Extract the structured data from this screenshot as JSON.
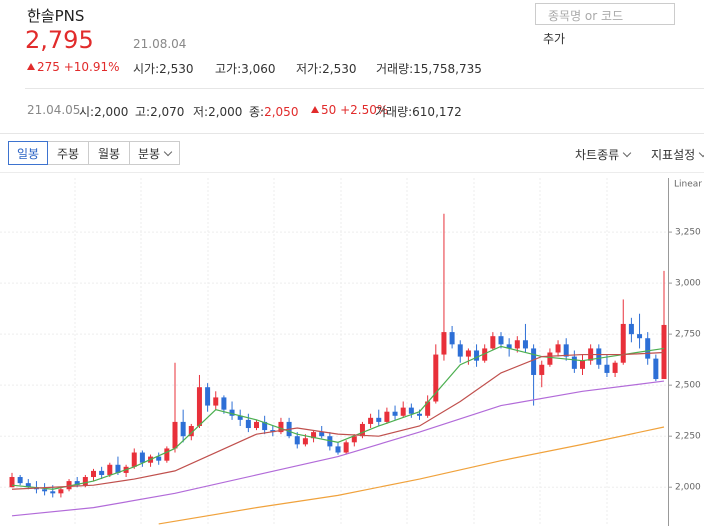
{
  "header": {
    "name": "한솔PNS",
    "price": "2,795",
    "date": "21.08.04",
    "change": "275 +10.91%",
    "open": "시가:2,530",
    "high": "고가:3,060",
    "low": "저가:2,530",
    "volume": "거래량:15,758,735"
  },
  "search": {
    "placeholder": "종목명 or 코드",
    "button": "추가"
  },
  "hover": {
    "date": "21.04.05",
    "open": "시:2,000",
    "high": "고:2,070",
    "low": "저:2,000",
    "close_label": "종:",
    "close": "2,050",
    "change": "50 +2.50%",
    "volume": "거래량:610,172"
  },
  "tabs": [
    "일봉",
    "주봉",
    "월봉",
    "분봉"
  ],
  "menus": [
    "차트종류",
    "지표설정"
  ],
  "chart_data": {
    "type": "candlestick",
    "scale_label": "Linear",
    "ylim": [
      1810,
      3515
    ],
    "yticks": [
      {
        "value": 2000,
        "label": "2,000"
      },
      {
        "value": 2250,
        "label": "2,250"
      },
      {
        "value": 2500,
        "label": "2,500"
      },
      {
        "value": 2750,
        "label": "2,750"
      },
      {
        "value": 3000,
        "label": "3,000"
      },
      {
        "value": 3250,
        "label": "3,250"
      }
    ],
    "grid": true,
    "up_color": "#e8303a",
    "down_color": "#2d6fd6",
    "open": [
      2000,
      2050,
      2020,
      2000,
      1990,
      1980,
      1970,
      1990,
      2030,
      2010,
      2050,
      2080,
      2060,
      2110,
      2070,
      2100,
      2170,
      2120,
      2150,
      2130,
      2190,
      2320,
      2250,
      2300,
      2490,
      2400,
      2440,
      2380,
      2350,
      2330,
      2290,
      2320,
      2280,
      2270,
      2320,
      2250,
      2210,
      2240,
      2270,
      2250,
      2200,
      2170,
      2220,
      2250,
      2310,
      2340,
      2320,
      2370,
      2350,
      2390,
      2360,
      2350,
      2420,
      2650,
      2760,
      2700,
      2640,
      2670,
      2620,
      2680,
      2740,
      2700,
      2680,
      2720,
      2680,
      2550,
      2600,
      2660,
      2700,
      2640,
      2580,
      2620,
      2680,
      2600,
      2560,
      2610,
      2800,
      2750,
      2730,
      2630,
      2530
    ],
    "high": [
      2070,
      2060,
      2040,
      2030,
      2020,
      2010,
      2000,
      2040,
      2050,
      2060,
      2090,
      2100,
      2120,
      2150,
      2110,
      2190,
      2180,
      2160,
      2170,
      2200,
      2610,
      2380,
      2310,
      2550,
      2510,
      2470,
      2450,
      2420,
      2380,
      2360,
      2330,
      2350,
      2300,
      2340,
      2340,
      2270,
      2260,
      2280,
      2300,
      2270,
      2220,
      2230,
      2260,
      2320,
      2360,
      2380,
      2390,
      2400,
      2420,
      2410,
      2380,
      2450,
      2700,
      3340,
      2790,
      2720,
      2680,
      2700,
      2700,
      2760,
      2760,
      2730,
      2740,
      2800,
      2700,
      2620,
      2680,
      2720,
      2730,
      2670,
      2650,
      2700,
      2700,
      2650,
      2620,
      2920,
      2830,
      2850,
      2760,
      2650,
      3060
    ],
    "low": [
      2000,
      2010,
      1990,
      1970,
      1960,
      1950,
      1950,
      1980,
      2000,
      2000,
      2030,
      2040,
      2050,
      2060,
      2050,
      2090,
      2100,
      2100,
      2110,
      2120,
      2170,
      2220,
      2230,
      2290,
      2370,
      2380,
      2360,
      2330,
      2300,
      2270,
      2280,
      2260,
      2250,
      2260,
      2240,
      2190,
      2200,
      2220,
      2240,
      2180,
      2160,
      2160,
      2200,
      2240,
      2290,
      2300,
      2310,
      2330,
      2340,
      2340,
      2330,
      2340,
      2410,
      2620,
      2680,
      2610,
      2600,
      2590,
      2610,
      2670,
      2680,
      2640,
      2660,
      2660,
      2400,
      2490,
      2590,
      2640,
      2620,
      2560,
      2550,
      2600,
      2580,
      2540,
      2540,
      2600,
      2710,
      2680,
      2600,
      2520,
      2530
    ],
    "close": [
      2050,
      2020,
      2000,
      1990,
      1980,
      1970,
      1990,
      2030,
      2010,
      2050,
      2080,
      2060,
      2110,
      2070,
      2100,
      2170,
      2120,
      2150,
      2130,
      2190,
      2320,
      2250,
      2300,
      2490,
      2400,
      2440,
      2380,
      2350,
      2330,
      2290,
      2320,
      2280,
      2270,
      2320,
      2250,
      2210,
      2240,
      2270,
      2250,
      2200,
      2170,
      2220,
      2250,
      2310,
      2340,
      2320,
      2370,
      2350,
      2390,
      2360,
      2350,
      2420,
      2650,
      2760,
      2700,
      2640,
      2670,
      2620,
      2680,
      2740,
      2700,
      2680,
      2720,
      2680,
      2550,
      2600,
      2660,
      2700,
      2640,
      2580,
      2620,
      2680,
      2600,
      2560,
      2610,
      2800,
      2750,
      2730,
      2630,
      2530,
      2795
    ],
    "series": [
      {
        "color": "#4caf50",
        "x": [
          0,
          5,
          10,
          15,
          20,
          25,
          30,
          35,
          40,
          45,
          50,
          55,
          60,
          65,
          70,
          75,
          80
        ],
        "values": [
          2010,
          1990,
          2030,
          2100,
          2190,
          2380,
          2330,
          2260,
          2220,
          2300,
          2370,
          2600,
          2690,
          2640,
          2620,
          2650,
          2680
        ]
      },
      {
        "color": "#c0504d",
        "x": [
          0,
          5,
          10,
          15,
          20,
          25,
          30,
          35,
          40,
          45,
          50,
          55,
          60,
          65,
          70,
          75,
          80
        ],
        "values": [
          1990,
          2000,
          2010,
          2040,
          2080,
          2170,
          2260,
          2290,
          2260,
          2250,
          2300,
          2420,
          2560,
          2640,
          2650,
          2650,
          2660
        ]
      },
      {
        "color": "#b26bd9",
        "x": [
          0,
          10,
          20,
          30,
          40,
          50,
          60,
          70,
          80
        ],
        "values": [
          1860,
          1900,
          1970,
          2060,
          2150,
          2270,
          2400,
          2470,
          2520
        ]
      },
      {
        "color": "#f0a23c",
        "x": [
          18,
          30,
          40,
          50,
          60,
          70,
          80
        ],
        "values": [
          1820,
          1900,
          1960,
          2040,
          2130,
          2210,
          2295
        ]
      }
    ]
  }
}
